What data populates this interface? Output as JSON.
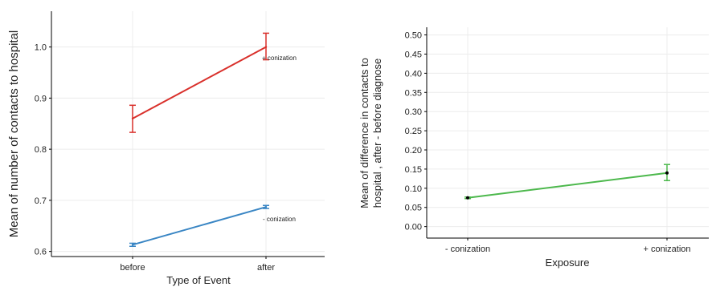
{
  "chart_data": [
    {
      "type": "line",
      "xlabel": "Type of Event",
      "ylabel": "Mean of number of contacts to hospital",
      "categories": [
        "before",
        "after"
      ],
      "ylim": [
        0.59,
        1.07
      ],
      "yticks": [
        "0.6",
        "0.7",
        "0.8",
        "0.9",
        "1.0"
      ],
      "ytick_values": [
        0.6,
        0.7,
        0.8,
        0.9,
        1.0
      ],
      "grid": true,
      "series": [
        {
          "name": "+ conization",
          "color": "#d9302b",
          "values": [
            0.86,
            1.0
          ],
          "err_low": [
            0.833,
            0.975
          ],
          "err_high": [
            0.886,
            1.027
          ]
        },
        {
          "name": "- conization",
          "color": "#3a86c4",
          "values": [
            0.613,
            0.687
          ],
          "err_low": [
            0.61,
            0.684
          ],
          "err_high": [
            0.616,
            0.69
          ]
        }
      ]
    },
    {
      "type": "line",
      "xlabel": "Exposure",
      "ylabel_line1": "Mean of difference in contacts to",
      "ylabel_line2": "hospital , after - before diagnose",
      "categories": [
        "- conization",
        "+ conization"
      ],
      "ylim": [
        -0.03,
        0.52
      ],
      "yticks": [
        "0.00",
        "0.05",
        "0.10",
        "0.15",
        "0.20",
        "0.25",
        "0.30",
        "0.35",
        "0.40",
        "0.45",
        "0.50"
      ],
      "ytick_values": [
        0.0,
        0.05,
        0.1,
        0.15,
        0.2,
        0.25,
        0.3,
        0.35,
        0.4,
        0.45,
        0.5
      ],
      "grid": true,
      "series": [
        {
          "color": "#4cb84c",
          "values": [
            0.075,
            0.14
          ],
          "err_low": [
            0.073,
            0.12
          ],
          "err_high": [
            0.077,
            0.162
          ]
        }
      ]
    }
  ]
}
